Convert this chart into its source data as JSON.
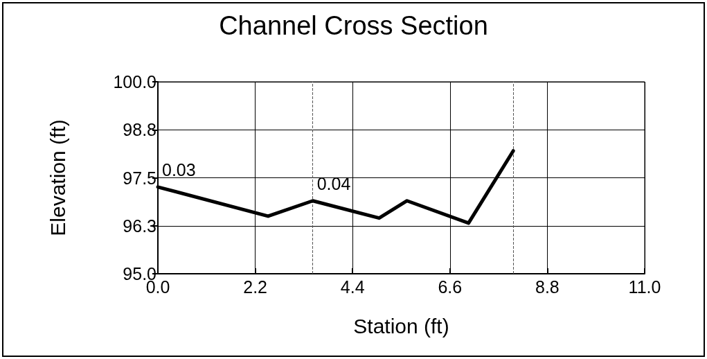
{
  "chart_data": {
    "type": "line",
    "title": "Channel Cross Section",
    "xlabel": "Station (ft)",
    "ylabel": "Elevation (ft)",
    "x": [
      0,
      2.49,
      3.5,
      5.0,
      5.63,
      7.02,
      8.03
    ],
    "series": [
      {
        "color": "#000000",
        "values": [
          97.26,
          96.5,
          96.9,
          96.45,
          96.9,
          96.32,
          98.2
        ]
      }
    ],
    "xlim": [
      0,
      11
    ],
    "xticks": [
      {
        "value": 0,
        "label": "0.0"
      },
      {
        "value": 2.2,
        "label": "2.2"
      },
      {
        "value": 4.4,
        "label": "4.4"
      },
      {
        "value": 6.6,
        "label": "6.6"
      },
      {
        "value": 8.8,
        "label": "8.8"
      },
      {
        "value": 11,
        "label": "11.0"
      }
    ],
    "ylim": [
      95,
      100
    ],
    "yticks": [
      {
        "value": 95,
        "label": "95.0"
      },
      {
        "value": 96.25,
        "label": "96.3"
      },
      {
        "value": 97.5,
        "label": "97.5"
      },
      {
        "value": 98.75,
        "label": "98.8"
      },
      {
        "value": 100,
        "label": "100.0"
      }
    ],
    "ref_lines": [
      {
        "axis": "x",
        "value": 3.5,
        "label": null,
        "line_style": "dashed",
        "color": "#555555"
      },
      {
        "axis": "x",
        "value": 8.03,
        "label": null,
        "line_style": "dashed",
        "color": "#555555"
      }
    ],
    "annotations": [
      {
        "text": "0.03",
        "x": 0,
        "y": 97.26
      },
      {
        "text": "0.04",
        "x": 3.5,
        "y": 96.9
      }
    ],
    "grid": true,
    "marker": "none",
    "line_style": "solid"
  }
}
